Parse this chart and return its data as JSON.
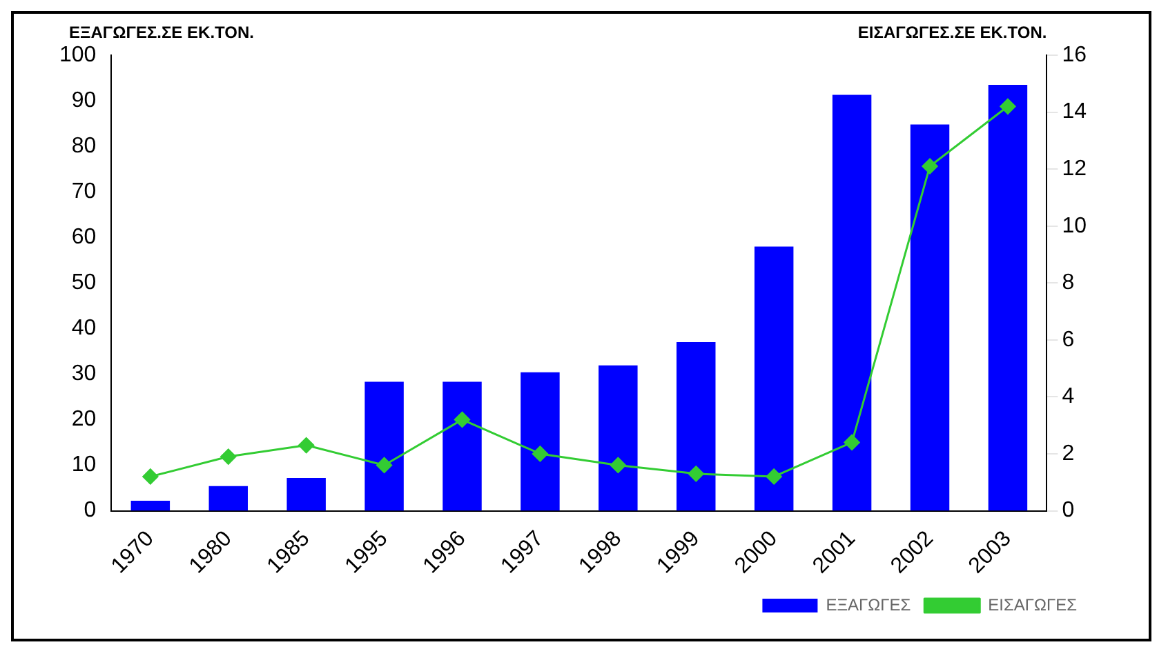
{
  "chart_data": {
    "type": "bar",
    "ylabel": "ΕΞΑΓΩΓΕΣ.ΣΕ ΕΚ.ΤΟΝ.",
    "y2label": "ΕΙΣΑΓΩΓΕΣ.ΣΕ ΕΚ.ΤΟΝ.",
    "categories": [
      "1970",
      "1980",
      "1985",
      "1995",
      "1996",
      "1997",
      "1998",
      "1999",
      "2000",
      "2001",
      "2002",
      "2003"
    ],
    "series": [
      {
        "name": "ΕΞΑΓΩΓΕΣ",
        "color": "#0000ff",
        "values": [
          2.2,
          5.4,
          7.2,
          28.3,
          28.3,
          30.4,
          31.9,
          37,
          58,
          91.3,
          84.8,
          93.5
        ]
      },
      {
        "name": "ΕΙΣΑΓΩΓΕΣ",
        "type": "line",
        "axis": "y2",
        "color": "#33cc33",
        "values": [
          1.2,
          1.9,
          2.3,
          1.6,
          3.2,
          2,
          1.6,
          1.3,
          1.2,
          2.4,
          12.1,
          14.2
        ]
      }
    ],
    "ylim": [
      0,
      100
    ],
    "yticks": [
      0,
      10,
      20,
      30,
      40,
      50,
      60,
      70,
      80,
      90,
      100
    ],
    "y2lim": [
      0,
      16
    ],
    "y2ticks": [
      0,
      2,
      4,
      6,
      8,
      10,
      12,
      14,
      16
    ],
    "grid": false,
    "legend": "bottom right",
    "marker": "diamond",
    "line_style": "solid"
  }
}
